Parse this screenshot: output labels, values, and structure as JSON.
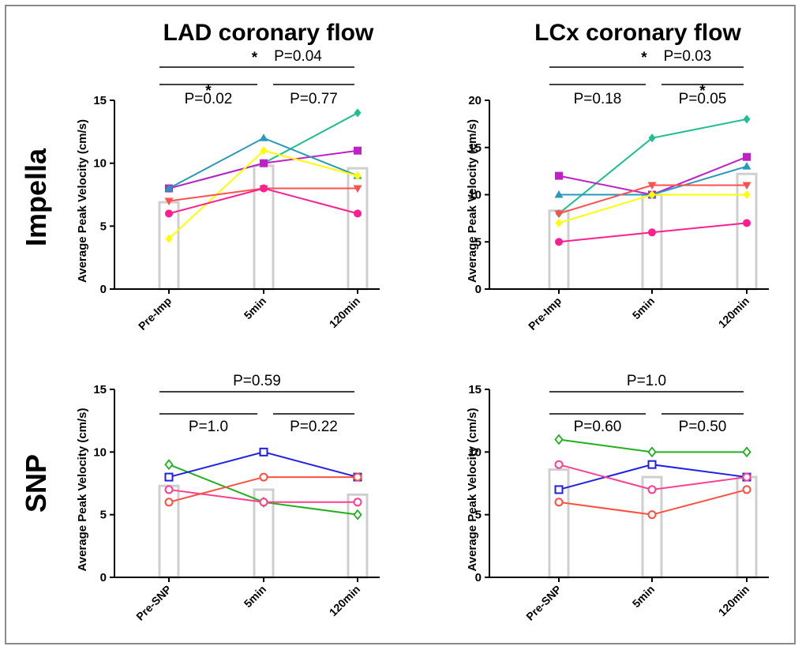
{
  "figure": {
    "row_labels": [
      "Impella",
      "SNP"
    ],
    "col_titles": [
      "LAD coronary flow",
      "LCx coronary flow"
    ]
  },
  "chart_data": [
    {
      "type": "line",
      "title": "LAD coronary flow",
      "row_label": "Impella",
      "ylabel": "Average Peak Velocity (cm/s)",
      "categories": [
        "Pre-Imp",
        "5min",
        "120min"
      ],
      "ylim": [
        0,
        15
      ],
      "yticks": [
        0,
        5,
        10,
        15
      ],
      "bars": [
        6.9,
        9.8,
        9.6
      ],
      "series": [
        {
          "color": "#1fbf8f",
          "marker": "diamond",
          "values": [
            8,
            10,
            14
          ]
        },
        {
          "color": "#c020c8",
          "marker": "square",
          "values": [
            8,
            10,
            11
          ]
        },
        {
          "color": "#2899b8",
          "marker": "triangle-up",
          "values": [
            8,
            12,
            9
          ]
        },
        {
          "color": "#ffff00",
          "marker": "diamond",
          "values": [
            4,
            11,
            9
          ]
        },
        {
          "color": "#ff5050",
          "marker": "triangle-down",
          "values": [
            7,
            8,
            8
          ]
        },
        {
          "color": "#ff1f8f",
          "marker": "circle",
          "values": [
            6,
            8,
            6
          ]
        }
      ],
      "annotations": [
        {
          "from": 0,
          "to": 2,
          "text": "P=0.04",
          "star": "*"
        },
        {
          "from": 0,
          "to": 1,
          "text": "P=0.02",
          "star": "*"
        },
        {
          "from": 1,
          "to": 2,
          "text": "P=0.77",
          "star": ""
        }
      ]
    },
    {
      "type": "line",
      "title": "LCx coronary flow",
      "row_label": "Impella",
      "ylabel": "Average Peak Velocity (cm/s)",
      "categories": [
        "Pre-Imp",
        "5min",
        "120min"
      ],
      "ylim": [
        0,
        20
      ],
      "yticks": [
        0,
        5,
        10,
        15,
        20
      ],
      "bars": [
        8.3,
        10.0,
        12.2
      ],
      "series": [
        {
          "color": "#1fbf8f",
          "marker": "diamond",
          "values": [
            8,
            16,
            18
          ]
        },
        {
          "color": "#c020c8",
          "marker": "square",
          "values": [
            12,
            10,
            14
          ]
        },
        {
          "color": "#2899b8",
          "marker": "triangle-up",
          "values": [
            10,
            10,
            13
          ]
        },
        {
          "color": "#ffff00",
          "marker": "diamond",
          "values": [
            7,
            10,
            10
          ]
        },
        {
          "color": "#ff5050",
          "marker": "triangle-down",
          "values": [
            8,
            11,
            11
          ]
        },
        {
          "color": "#ff1f8f",
          "marker": "circle",
          "values": [
            5,
            6,
            7
          ]
        }
      ],
      "annotations": [
        {
          "from": 0,
          "to": 2,
          "text": "P=0.03",
          "star": "*"
        },
        {
          "from": 0,
          "to": 1,
          "text": "P=0.18",
          "star": ""
        },
        {
          "from": 1,
          "to": 2,
          "text": "P=0.05",
          "star": "*"
        }
      ]
    },
    {
      "type": "line",
      "row_label": "SNP",
      "ylabel": "Average Peak Velocity (cm/s)",
      "categories": [
        "Pre-SNP",
        "5min",
        "120min"
      ],
      "ylim": [
        0,
        15
      ],
      "yticks": [
        0,
        5,
        10,
        15
      ],
      "bars": [
        7.3,
        7.0,
        6.6
      ],
      "series": [
        {
          "color": "#20b020",
          "marker": "open-diamond",
          "values": [
            9,
            6,
            5
          ]
        },
        {
          "color": "#1f1fe6",
          "marker": "open-square",
          "values": [
            8,
            10,
            8
          ]
        },
        {
          "color": "#ff3f8f",
          "marker": "open-circle",
          "values": [
            7,
            6,
            6
          ]
        },
        {
          "color": "#ff4f3f",
          "marker": "open-circle",
          "values": [
            6,
            8,
            8
          ]
        }
      ],
      "annotations": [
        {
          "from": 0,
          "to": 2,
          "text": "P=0.59",
          "star": ""
        },
        {
          "from": 0,
          "to": 1,
          "text": "P=1.0",
          "star": ""
        },
        {
          "from": 1,
          "to": 2,
          "text": "P=0.22",
          "star": ""
        }
      ]
    },
    {
      "type": "line",
      "row_label": "SNP",
      "ylabel": "Average Peak Velocity (cm/s)",
      "categories": [
        "Pre-SNP",
        "5min",
        "120min"
      ],
      "ylim": [
        0,
        15
      ],
      "yticks": [
        0,
        5,
        10,
        15
      ],
      "bars": [
        8.6,
        8.0,
        8.0
      ],
      "series": [
        {
          "color": "#20b020",
          "marker": "open-diamond",
          "values": [
            11,
            10,
            10
          ]
        },
        {
          "color": "#1f1fe6",
          "marker": "open-square",
          "values": [
            7,
            9,
            8
          ]
        },
        {
          "color": "#ff3f8f",
          "marker": "open-circle",
          "values": [
            9,
            7,
            8
          ]
        },
        {
          "color": "#ff4f3f",
          "marker": "open-circle",
          "values": [
            6,
            5,
            7
          ]
        }
      ],
      "annotations": [
        {
          "from": 0,
          "to": 2,
          "text": "P=1.0",
          "star": ""
        },
        {
          "from": 0,
          "to": 1,
          "text": "P=0.60",
          "star": ""
        },
        {
          "from": 1,
          "to": 2,
          "text": "P=0.50",
          "star": ""
        }
      ]
    }
  ]
}
